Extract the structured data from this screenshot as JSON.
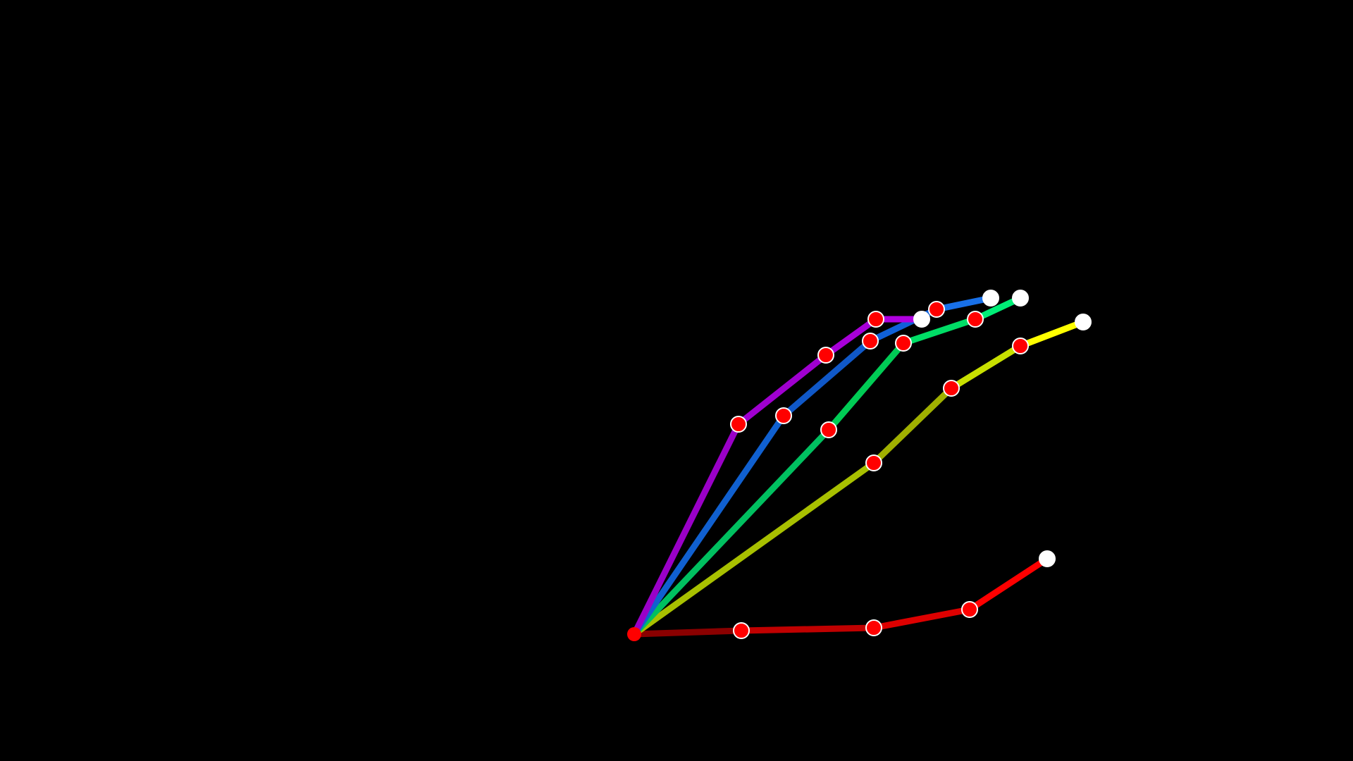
{
  "diagram": {
    "type": "hand-pose-skeleton",
    "background_color": "#000000",
    "joint_color": "#ff0000",
    "joint_outline_color": "#ffffff",
    "tip_color": "#ffffff",
    "fingers": [
      {
        "name": "thumb",
        "joint_count": 4,
        "segment_colors": [
          "#8a0000",
          "#c00000",
          "#dd0000",
          "#ff0000"
        ]
      },
      {
        "name": "index",
        "joint_count": 4,
        "segment_colors": [
          "#a8c000",
          "#a0b000",
          "#c8e000",
          "#ffff00"
        ]
      },
      {
        "name": "middle",
        "joint_count": 4,
        "segment_colors": [
          "#00c060",
          "#00cc55",
          "#00dd66",
          "#00ee77"
        ]
      },
      {
        "name": "ring",
        "joint_count": 4,
        "segment_colors": [
          "#1060d0",
          "#1058c8",
          "#1060d8",
          "#1870e8"
        ]
      },
      {
        "name": "pinky",
        "joint_count": 4,
        "segment_colors": [
          "#9a00c8",
          "#a000d0",
          "#a800d8",
          "#b000e0"
        ]
      }
    ]
  }
}
